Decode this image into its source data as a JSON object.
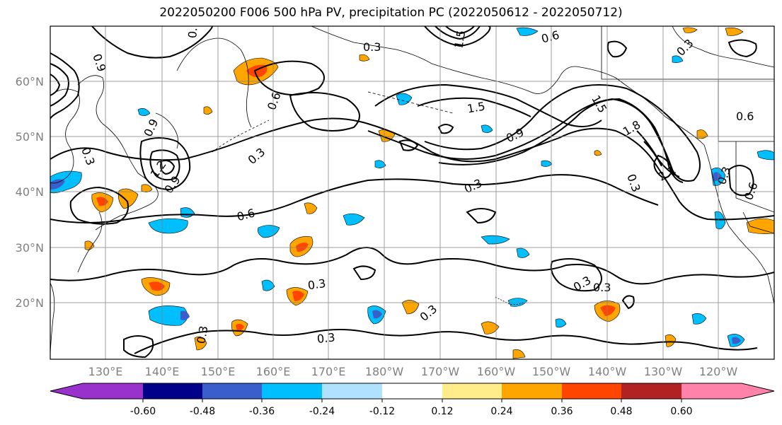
{
  "title": "2022050200 F006 500 hPa PV, precipitation PC (2022050612 - 2022050712)",
  "map": {
    "lon_labels": [
      "130°E",
      "140°E",
      "150°E",
      "160°E",
      "170°E",
      "180°W",
      "170°W",
      "160°W",
      "150°W",
      "140°W",
      "130°W",
      "120°W"
    ],
    "lat_labels": [
      "60°N",
      "50°N",
      "40°N",
      "30°N",
      "20°N"
    ],
    "label_color": "#808080",
    "contour_labels": [
      "0.3",
      "0.6",
      "0.9",
      "1.2",
      "1.5",
      "1.8",
      "2.1"
    ],
    "contour_levels": [
      0.3,
      0.6,
      0.9,
      1.2,
      1.5,
      1.8,
      2.1
    ]
  },
  "colorbar": {
    "colors": [
      "#9932cc",
      "#00008b",
      "#3a5fcd",
      "#00bfff",
      "#b0e2ff",
      "#ffffff",
      "#ffec8b",
      "#ffa500",
      "#ff4500",
      "#b22222",
      "#ff82ab"
    ],
    "tick_labels": [
      "-0.60",
      "-0.48",
      "-0.36",
      "-0.24",
      "-0.12",
      "0.12",
      "0.24",
      "0.36",
      "0.48",
      "0.60"
    ],
    "tick_values": [
      -0.6,
      -0.48,
      -0.36,
      -0.24,
      -0.12,
      0.12,
      0.24,
      0.36,
      0.48,
      0.6
    ]
  }
}
